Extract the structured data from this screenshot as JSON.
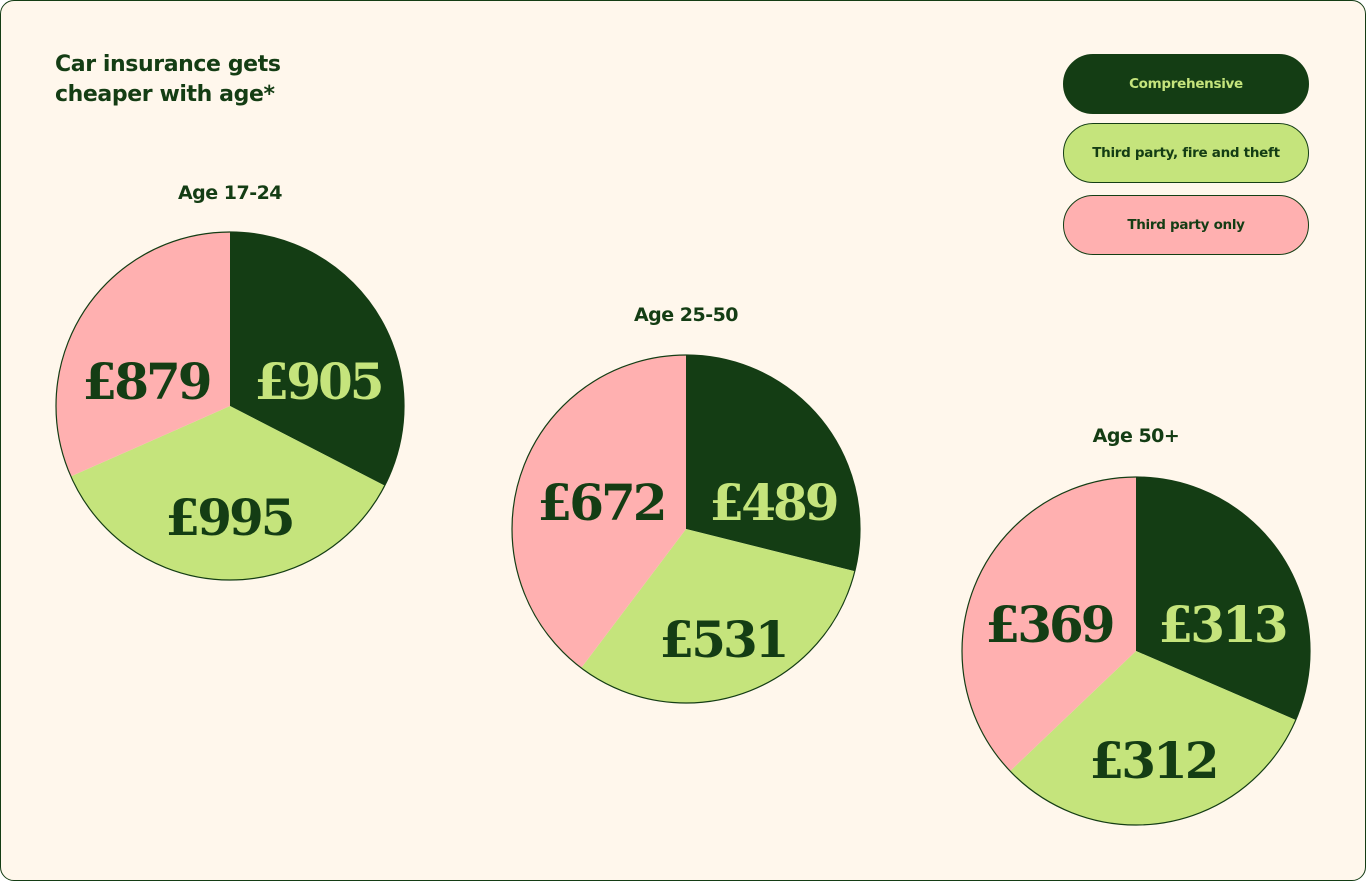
{
  "title": "Car insurance gets cheaper with age*",
  "colors": {
    "background": "#fff7ec",
    "comprehensive": "#143d14",
    "third_party_fire_theft": "#c5e47c",
    "third_party_only": "#ffb0b0",
    "border": "#143d14"
  },
  "legend": [
    {
      "label": "Comprehensive",
      "key": "comprehensive"
    },
    {
      "label": "Third party, fire and theft",
      "key": "third_party_fire_theft"
    },
    {
      "label": "Third party only",
      "key": "third_party_only"
    }
  ],
  "chart_data": [
    {
      "type": "pie",
      "title": "Age 17-24",
      "slices": [
        {
          "series": "Comprehensive",
          "value": 905,
          "label": "£905"
        },
        {
          "series": "Third party, fire and theft",
          "value": 995,
          "label": "£995"
        },
        {
          "series": "Third party only",
          "value": 879,
          "label": "£879"
        }
      ]
    },
    {
      "type": "pie",
      "title": "Age 25-50",
      "slices": [
        {
          "series": "Comprehensive",
          "value": 489,
          "label": "£489"
        },
        {
          "series": "Third party, fire and theft",
          "value": 531,
          "label": "£531"
        },
        {
          "series": "Third party only",
          "value": 672,
          "label": "£672"
        }
      ]
    },
    {
      "type": "pie",
      "title": "Age 50+",
      "slices": [
        {
          "series": "Comprehensive",
          "value": 313,
          "label": "£313"
        },
        {
          "series": "Third party, fire and theft",
          "value": 312,
          "label": "£312"
        },
        {
          "series": "Third party only",
          "value": 369,
          "label": "£369"
        }
      ]
    }
  ]
}
